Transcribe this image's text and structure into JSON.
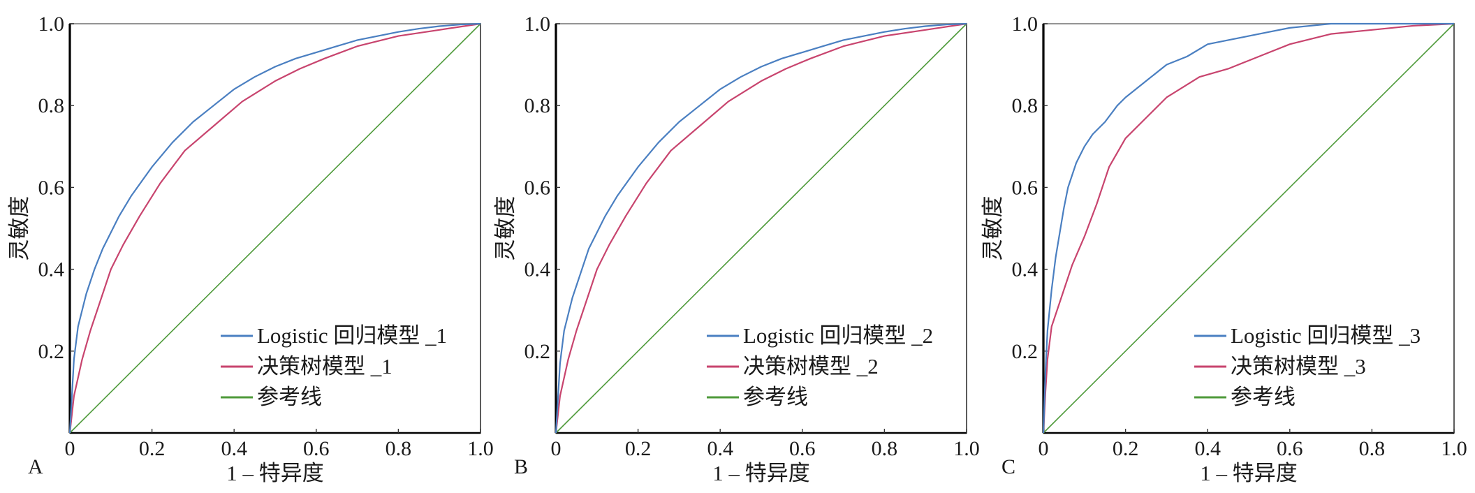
{
  "colors": {
    "logistic": "#4a7fc1",
    "decision_tree": "#c8446e",
    "reference": "#4e9a3a"
  },
  "chart_data": [
    {
      "type": "line",
      "panel_label": "A",
      "xlabel": "1 – 特异度",
      "ylabel": "灵敏度",
      "xlim": [
        0,
        1
      ],
      "ylim": [
        0,
        1
      ],
      "x_ticks": [
        "0",
        "0.2",
        "0.4",
        "0.6",
        "0.8",
        "1.0"
      ],
      "y_ticks": [
        "0.2",
        "0.4",
        "0.6",
        "0.8",
        "1.0"
      ],
      "grid": false,
      "legend_position": "bottom-right",
      "series": [
        {
          "name": "Logistic 回归模型 _1",
          "color_key": "logistic",
          "x": [
            0,
            0.01,
            0.02,
            0.04,
            0.06,
            0.08,
            0.1,
            0.12,
            0.15,
            0.2,
            0.25,
            0.3,
            0.35,
            0.4,
            0.45,
            0.5,
            0.55,
            0.6,
            0.65,
            0.7,
            0.75,
            0.8,
            0.85,
            0.9,
            0.95,
            1.0
          ],
          "y": [
            0,
            0.18,
            0.26,
            0.34,
            0.4,
            0.45,
            0.49,
            0.53,
            0.58,
            0.65,
            0.71,
            0.76,
            0.8,
            0.84,
            0.87,
            0.895,
            0.915,
            0.93,
            0.945,
            0.96,
            0.97,
            0.98,
            0.988,
            0.994,
            0.998,
            1.0
          ]
        },
        {
          "name": "决策树模型 _1",
          "color_key": "decision_tree",
          "x": [
            0,
            0.01,
            0.03,
            0.05,
            0.07,
            0.1,
            0.13,
            0.17,
            0.22,
            0.28,
            0.35,
            0.42,
            0.5,
            0.56,
            0.62,
            0.7,
            0.8,
            0.9,
            1.0
          ],
          "y": [
            0,
            0.09,
            0.18,
            0.25,
            0.31,
            0.4,
            0.46,
            0.53,
            0.61,
            0.69,
            0.75,
            0.81,
            0.86,
            0.89,
            0.915,
            0.945,
            0.97,
            0.985,
            1.0
          ]
        },
        {
          "name": "参考线",
          "color_key": "reference",
          "x": [
            0,
            1
          ],
          "y": [
            0,
            1
          ]
        }
      ]
    },
    {
      "type": "line",
      "panel_label": "B",
      "xlabel": "1 – 特异度",
      "ylabel": "灵敏度",
      "xlim": [
        0,
        1
      ],
      "ylim": [
        0,
        1
      ],
      "x_ticks": [
        "0",
        "0.2",
        "0.4",
        "0.6",
        "0.8",
        "1.0"
      ],
      "y_ticks": [
        "0.2",
        "0.4",
        "0.6",
        "0.8",
        "1.0"
      ],
      "grid": false,
      "legend_position": "bottom-right",
      "series": [
        {
          "name": "Logistic 回归模型 _2",
          "color_key": "logistic",
          "x": [
            0,
            0.01,
            0.02,
            0.04,
            0.06,
            0.08,
            0.1,
            0.12,
            0.15,
            0.2,
            0.25,
            0.3,
            0.35,
            0.4,
            0.45,
            0.5,
            0.55,
            0.6,
            0.65,
            0.7,
            0.75,
            0.8,
            0.85,
            0.9,
            0.95,
            1.0
          ],
          "y": [
            0,
            0.17,
            0.25,
            0.33,
            0.39,
            0.45,
            0.49,
            0.53,
            0.58,
            0.65,
            0.71,
            0.76,
            0.8,
            0.84,
            0.87,
            0.895,
            0.915,
            0.93,
            0.945,
            0.96,
            0.97,
            0.98,
            0.988,
            0.994,
            0.998,
            1.0
          ]
        },
        {
          "name": "决策树模型 _2",
          "color_key": "decision_tree",
          "x": [
            0,
            0.01,
            0.03,
            0.05,
            0.07,
            0.1,
            0.13,
            0.17,
            0.22,
            0.28,
            0.35,
            0.42,
            0.5,
            0.56,
            0.62,
            0.7,
            0.8,
            0.9,
            1.0
          ],
          "y": [
            0,
            0.09,
            0.18,
            0.25,
            0.31,
            0.4,
            0.46,
            0.53,
            0.61,
            0.69,
            0.75,
            0.81,
            0.86,
            0.89,
            0.915,
            0.945,
            0.97,
            0.985,
            1.0
          ]
        },
        {
          "name": "参考线",
          "color_key": "reference",
          "x": [
            0,
            1
          ],
          "y": [
            0,
            1
          ]
        }
      ]
    },
    {
      "type": "line",
      "panel_label": "C",
      "xlabel": "1 – 特异度",
      "ylabel": "灵敏度",
      "xlim": [
        0,
        1
      ],
      "ylim": [
        0,
        1
      ],
      "x_ticks": [
        "0",
        "0.2",
        "0.4",
        "0.6",
        "0.8",
        "1.0"
      ],
      "y_ticks": [
        "0.2",
        "0.4",
        "0.6",
        "0.8",
        "1.0"
      ],
      "grid": false,
      "legend_position": "bottom-right",
      "series": [
        {
          "name": "Logistic 回归模型 _3",
          "color_key": "logistic",
          "x": [
            0,
            0.005,
            0.01,
            0.02,
            0.03,
            0.04,
            0.05,
            0.06,
            0.08,
            0.1,
            0.12,
            0.15,
            0.18,
            0.2,
            0.25,
            0.3,
            0.35,
            0.4,
            0.45,
            0.5,
            0.55,
            0.6,
            0.65,
            0.7,
            0.8,
            0.9,
            1.0
          ],
          "y": [
            0,
            0.15,
            0.25,
            0.35,
            0.43,
            0.49,
            0.55,
            0.6,
            0.66,
            0.7,
            0.73,
            0.76,
            0.8,
            0.82,
            0.86,
            0.9,
            0.92,
            0.95,
            0.96,
            0.97,
            0.98,
            0.99,
            0.995,
            1.0,
            1.0,
            1.0,
            1.0
          ]
        },
        {
          "name": "决策树模型 _3",
          "color_key": "decision_tree",
          "x": [
            0,
            0.005,
            0.01,
            0.02,
            0.04,
            0.07,
            0.1,
            0.13,
            0.16,
            0.2,
            0.25,
            0.3,
            0.38,
            0.45,
            0.5,
            0.55,
            0.6,
            0.7,
            0.8,
            0.9,
            1.0
          ],
          "y": [
            0,
            0.1,
            0.18,
            0.26,
            0.32,
            0.41,
            0.48,
            0.56,
            0.65,
            0.72,
            0.77,
            0.82,
            0.87,
            0.89,
            0.91,
            0.93,
            0.95,
            0.975,
            0.985,
            0.995,
            1.0
          ]
        },
        {
          "name": "参考线",
          "color_key": "reference",
          "x": [
            0,
            1
          ],
          "y": [
            0,
            1
          ]
        }
      ]
    }
  ]
}
